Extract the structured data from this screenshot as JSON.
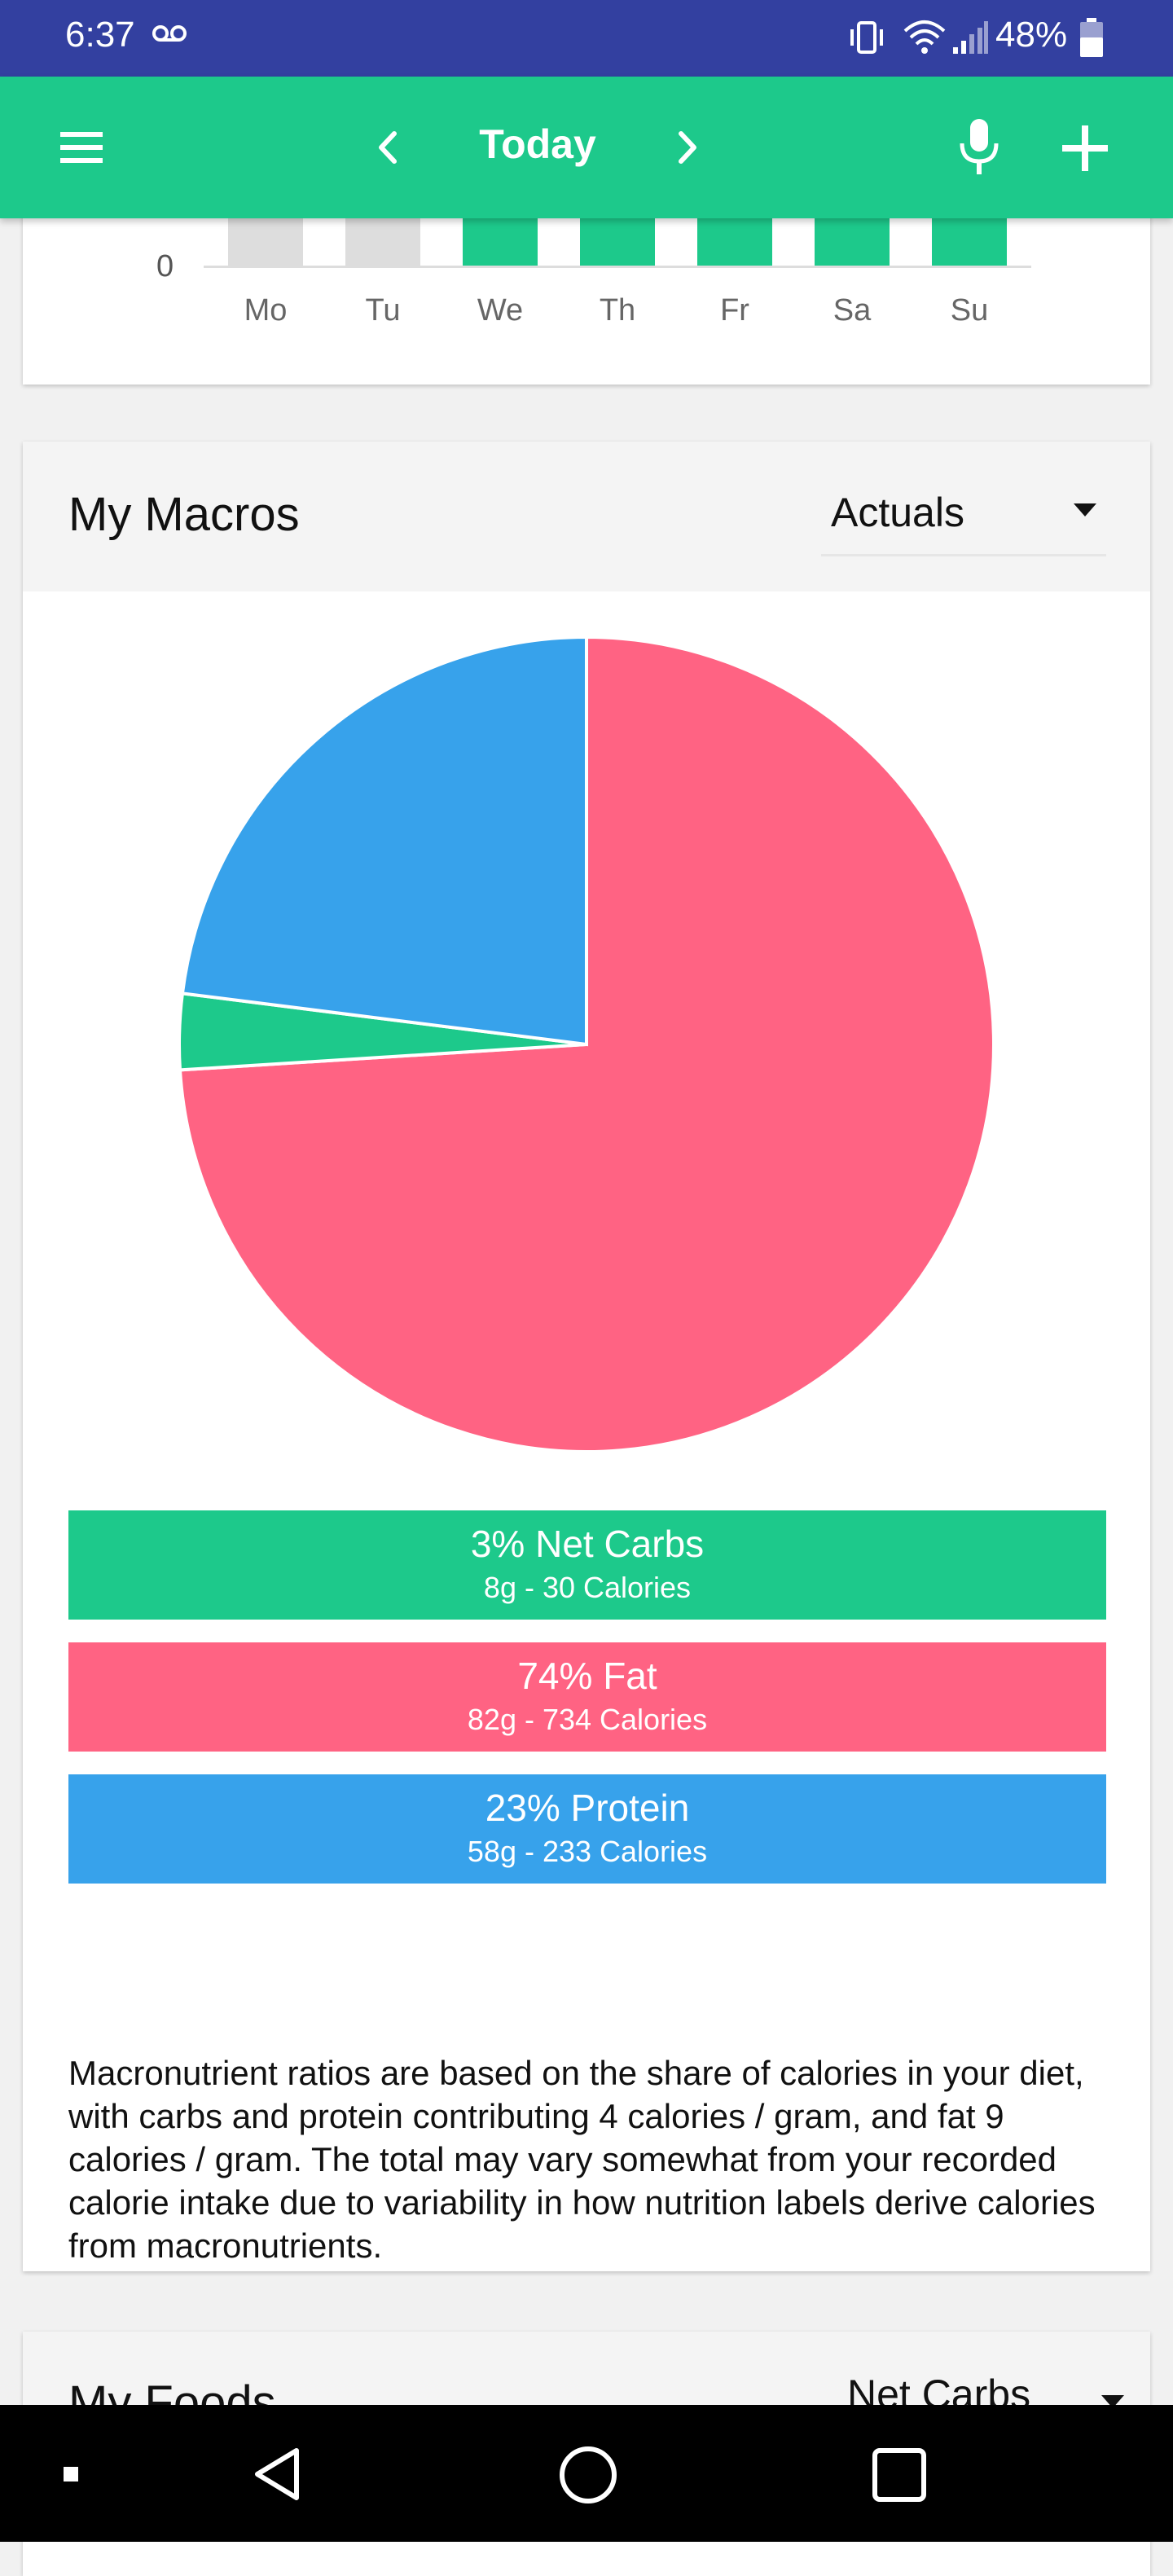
{
  "status_bar": {
    "time": "6:37",
    "battery": "48%",
    "icons": [
      "voicemail-icon",
      "vibrate-icon",
      "wifi-icon",
      "signal-icon",
      "battery-icon"
    ]
  },
  "app_bar": {
    "title": "Today",
    "icons": [
      "menu-icon",
      "chevron-left-icon",
      "chevron-right-icon",
      "microphone-icon",
      "add-icon"
    ]
  },
  "weekly_chart": {
    "zero_label": "0",
    "days": [
      "Mo",
      "Tu",
      "We",
      "Th",
      "Fr",
      "Sa",
      "Su"
    ],
    "bar_colors": [
      "#dddddd",
      "#dddddd",
      "#1dc98b",
      "#1dc98b",
      "#1dc98b",
      "#1dc98b",
      "#1dc98b"
    ]
  },
  "macros": {
    "title": "My Macros",
    "view_select": "Actuals",
    "items": [
      {
        "line1": "3% Net Carbs",
        "line2": "8g - 30 Calories",
        "color": "#1dc98b"
      },
      {
        "line1": "74% Fat",
        "line2": "82g - 734 Calories",
        "color": "#ff6383"
      },
      {
        "line1": "23% Protein",
        "line2": "58g - 233 Calories",
        "color": "#37a2eb"
      }
    ],
    "note": "Macronutrient ratios are based on the share of calories in your diet, with carbs and protein contributing 4 calories / gram, and fat 9 calories / gram. The total may vary somewhat from your recorded calorie intake due to variability in how nutrition labels derive calories from macronutrients."
  },
  "foods": {
    "title": "My Foods",
    "view_select": "Net Carbs"
  },
  "nav_bar": {
    "icons": [
      "recents-dot-icon",
      "back-icon",
      "home-icon",
      "overview-icon"
    ]
  },
  "chart_data": {
    "type": "pie",
    "categories": [
      "Fat",
      "Net Carbs",
      "Protein"
    ],
    "values": [
      74,
      3,
      23
    ],
    "colors": [
      "#ff6383",
      "#1dc98b",
      "#37a2eb"
    ]
  }
}
